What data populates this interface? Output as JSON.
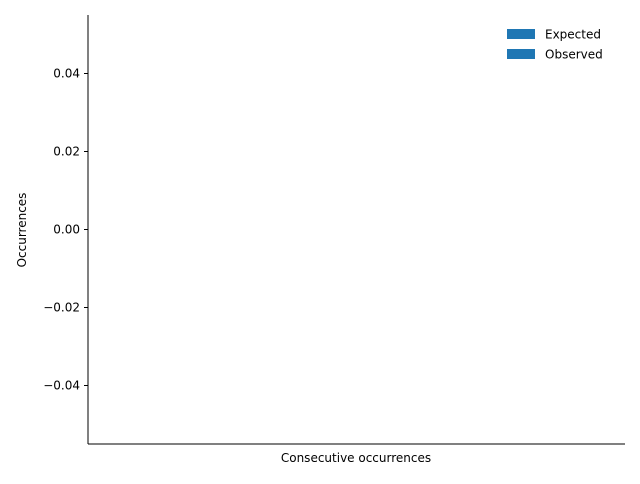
{
  "chart_data": {
    "type": "bar",
    "title": "",
    "xlabel": "Consecutive occurrences",
    "ylabel": "Occurrences",
    "categories": [],
    "series": [
      {
        "name": "Expected",
        "values": [],
        "color": "#1f77b4"
      },
      {
        "name": "Observed",
        "values": [],
        "color": "#1f77b4"
      }
    ],
    "ylim": [
      -0.055,
      0.055
    ],
    "yticks": [
      -0.04,
      -0.02,
      0.0,
      0.02,
      0.04
    ],
    "ytick_labels": [
      "−0.04",
      "−0.02",
      "0.00",
      "0.02",
      "0.04"
    ],
    "grid": false,
    "legend_position": "top-right",
    "spines": "left-bottom"
  }
}
